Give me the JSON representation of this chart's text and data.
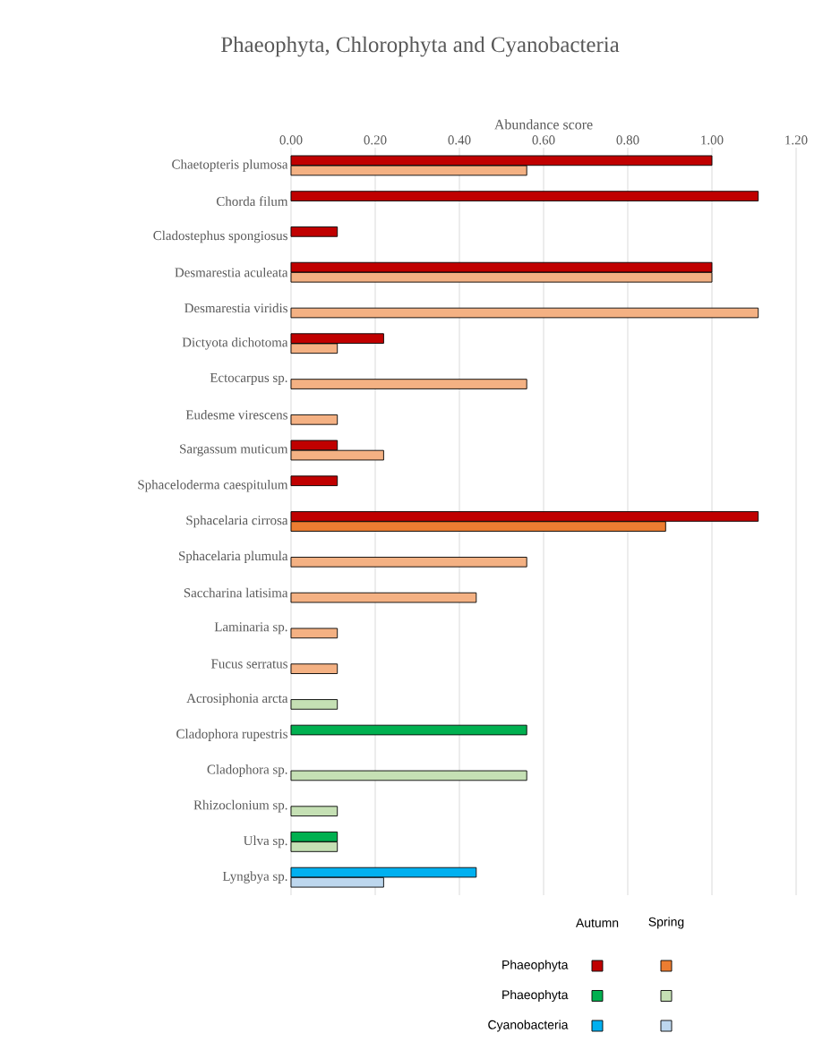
{
  "chart_data": {
    "type": "bar",
    "orientation": "horizontal",
    "title": "Phaeophyta, Chlorophyta and Cyanobacteria",
    "xlabel": "Abundance score",
    "categories": [
      "Chaetopteris plumosa",
      "Chorda filum",
      "Cladostephus spongiosus",
      "Desmarestia aculeata",
      "Desmarestia viridis",
      "Dictyota dichotoma",
      "Ectocarpus sp.",
      "Eudesme virescens",
      "Sargassum muticum",
      "Sphaceloderma caespitulum",
      "Sphacelaria cirrosa",
      "Sphacelaria plumula",
      "Saccharina latisima",
      "Laminaria sp.",
      "Fucus serratus",
      "Acrosiphonia arcta",
      "Cladophora rupestris",
      "Cladophora sp.",
      "Rhizoclonium sp.",
      "Ulva sp.",
      "Lyngbya sp."
    ],
    "series": [
      {
        "name": "Phaeophyta",
        "color": "#c00000",
        "values": [
          1.0,
          1.11,
          0.11,
          1.0,
          null,
          0.22,
          null,
          null,
          0.11,
          0.11,
          1.11,
          null,
          null,
          null,
          null,
          null,
          null,
          null,
          null,
          null,
          null
        ]
      },
      {
        "color": "#ed7d31",
        "colors": [
          "#f4b183",
          "#f4b183",
          "#f4b183",
          "#f4b183",
          "#f4b183",
          "#f4b183",
          "#f4b183",
          "#f4b183",
          "#f4b183",
          "#f4b183",
          "#ed7d31",
          "#f4b183",
          "#f4b183",
          "#f4b183",
          "#f4b183",
          "#f4b183",
          "#f4b183",
          "#f4b183",
          "#f4b183",
          "#f4b183",
          "#f4b183"
        ],
        "values": [
          0.56,
          null,
          null,
          1.0,
          1.11,
          0.11,
          0.56,
          0.11,
          0.22,
          null,
          0.89,
          0.56,
          0.44,
          0.11,
          0.11,
          null,
          null,
          null,
          null,
          null,
          null
        ]
      },
      {
        "name": "Phaeophyta",
        "color": "#00b050",
        "values": [
          null,
          null,
          null,
          null,
          null,
          null,
          null,
          null,
          null,
          null,
          null,
          null,
          null,
          null,
          null,
          null,
          0.56,
          null,
          null,
          0.11,
          null
        ]
      },
      {
        "color": "#c5e0b4",
        "values": [
          null,
          null,
          null,
          null,
          null,
          null,
          null,
          null,
          null,
          null,
          null,
          null,
          null,
          null,
          null,
          0.11,
          null,
          0.56,
          0.11,
          0.11,
          null
        ]
      },
      {
        "name": "Cyanobacteria",
        "color": "#00b0f0",
        "values": [
          null,
          null,
          null,
          null,
          null,
          null,
          null,
          null,
          null,
          null,
          null,
          null,
          null,
          null,
          null,
          null,
          null,
          null,
          null,
          null,
          0.44
        ]
      },
      {
        "color": "#bdd7ee",
        "values": [
          null,
          null,
          null,
          null,
          null,
          null,
          null,
          null,
          null,
          null,
          null,
          null,
          null,
          null,
          null,
          null,
          null,
          null,
          null,
          null,
          0.22
        ]
      }
    ],
    "xlim": [
      0,
      1.2
    ],
    "xticks": [
      {
        "value": 0,
        "label": "0.00"
      },
      {
        "value": 0.2,
        "label": "0.20"
      },
      {
        "value": 0.4,
        "label": "0.40"
      },
      {
        "value": 0.6,
        "label": "0.60"
      },
      {
        "value": 0.8,
        "label": "0.80"
      },
      {
        "value": 1.0,
        "label": "1.00"
      },
      {
        "value": 1.2,
        "label": "1.20"
      }
    ],
    "grid": "x",
    "legend": "bottom",
    "annotations": [
      "Autumn",
      "Spring"
    ]
  }
}
